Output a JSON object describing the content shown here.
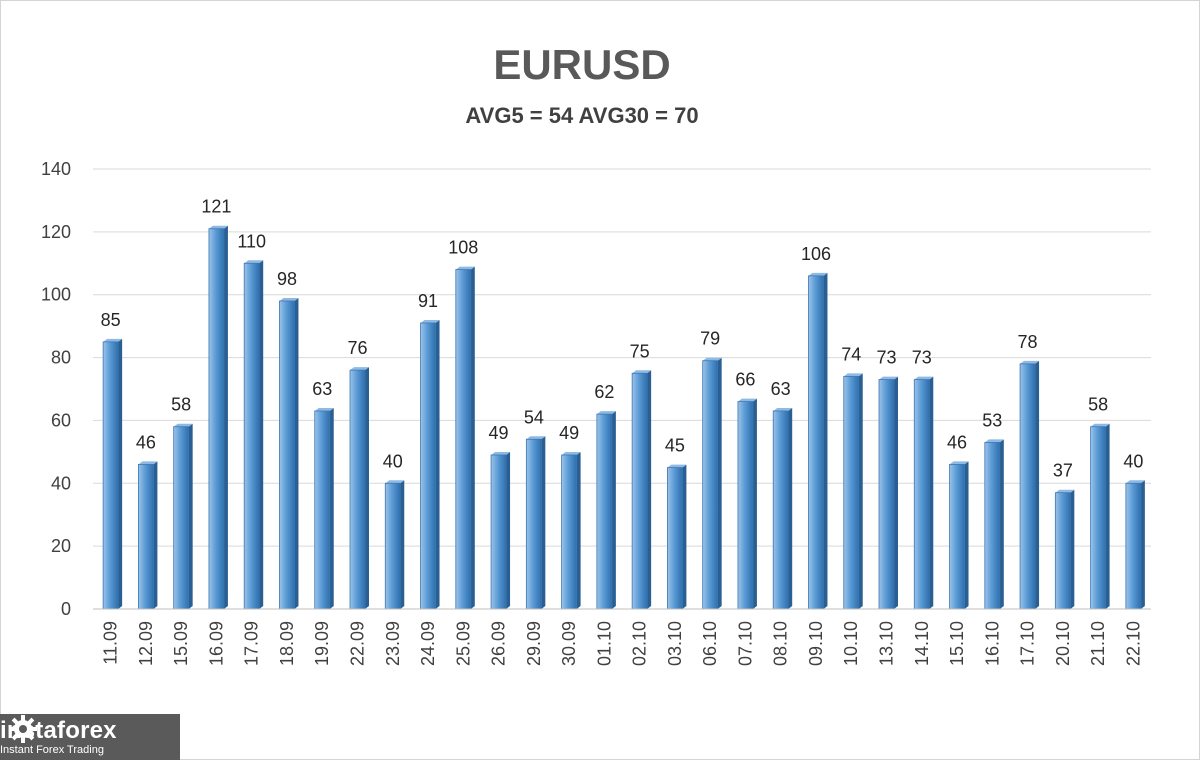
{
  "chart_data": {
    "type": "bar",
    "title": "EURUSD",
    "subtitle": "AVG5 = 54 AVG30 = 70",
    "xlabel": "",
    "ylabel": "",
    "ylim": [
      0,
      140
    ],
    "yticks": [
      0,
      20,
      40,
      60,
      80,
      100,
      120,
      140
    ],
    "grid": true,
    "legend": "none",
    "bar_color": "#5b9bd5",
    "categories": [
      "11.09",
      "12.09",
      "15.09",
      "16.09",
      "17.09",
      "18.09",
      "19.09",
      "22.09",
      "23.09",
      "24.09",
      "25.09",
      "26.09",
      "29.09",
      "30.09",
      "01.10",
      "02.10",
      "03.10",
      "06.10",
      "07.10",
      "08.10",
      "09.10",
      "10.10",
      "13.10",
      "14.10",
      "15.10",
      "16.10",
      "17.10",
      "20.10",
      "21.10",
      "22.10"
    ],
    "values": [
      85,
      46,
      58,
      121,
      110,
      98,
      63,
      76,
      40,
      91,
      108,
      49,
      54,
      49,
      62,
      75,
      45,
      79,
      66,
      63,
      106,
      74,
      73,
      73,
      46,
      53,
      78,
      37,
      58,
      40
    ]
  },
  "logo": {
    "name": "instaforex",
    "tagline": "Instant Forex Trading",
    "icon": "gear-icon"
  }
}
